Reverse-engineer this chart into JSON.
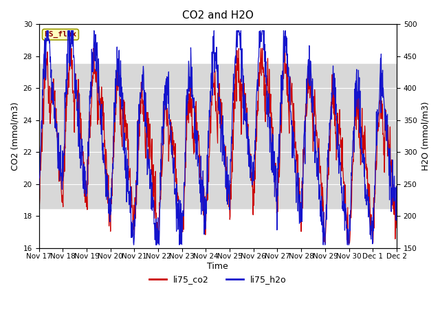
{
  "title": "CO2 and H2O",
  "xlabel": "Time",
  "ylabel_left": "CO2 (mmol/m3)",
  "ylabel_right": "H2O (mmol/m3)",
  "ylim_left": [
    16,
    30
  ],
  "ylim_right": [
    150,
    500
  ],
  "yticks_left": [
    16,
    18,
    20,
    22,
    24,
    26,
    28,
    30
  ],
  "yticks_right": [
    150,
    200,
    250,
    300,
    350,
    400,
    450,
    500
  ],
  "shade_ylim": [
    18.5,
    27.5
  ],
  "hs_flux_label": "HS_flux",
  "legend_entries": [
    "li75_co2",
    "li75_h2o"
  ],
  "line_colors": [
    "#cc0000",
    "#1414cc"
  ],
  "background_color": "#ffffff",
  "shade_color": "#d8d8d8",
  "title_fontsize": 11,
  "axis_fontsize": 9,
  "tick_fontsize": 7.5,
  "n_points": 1200
}
